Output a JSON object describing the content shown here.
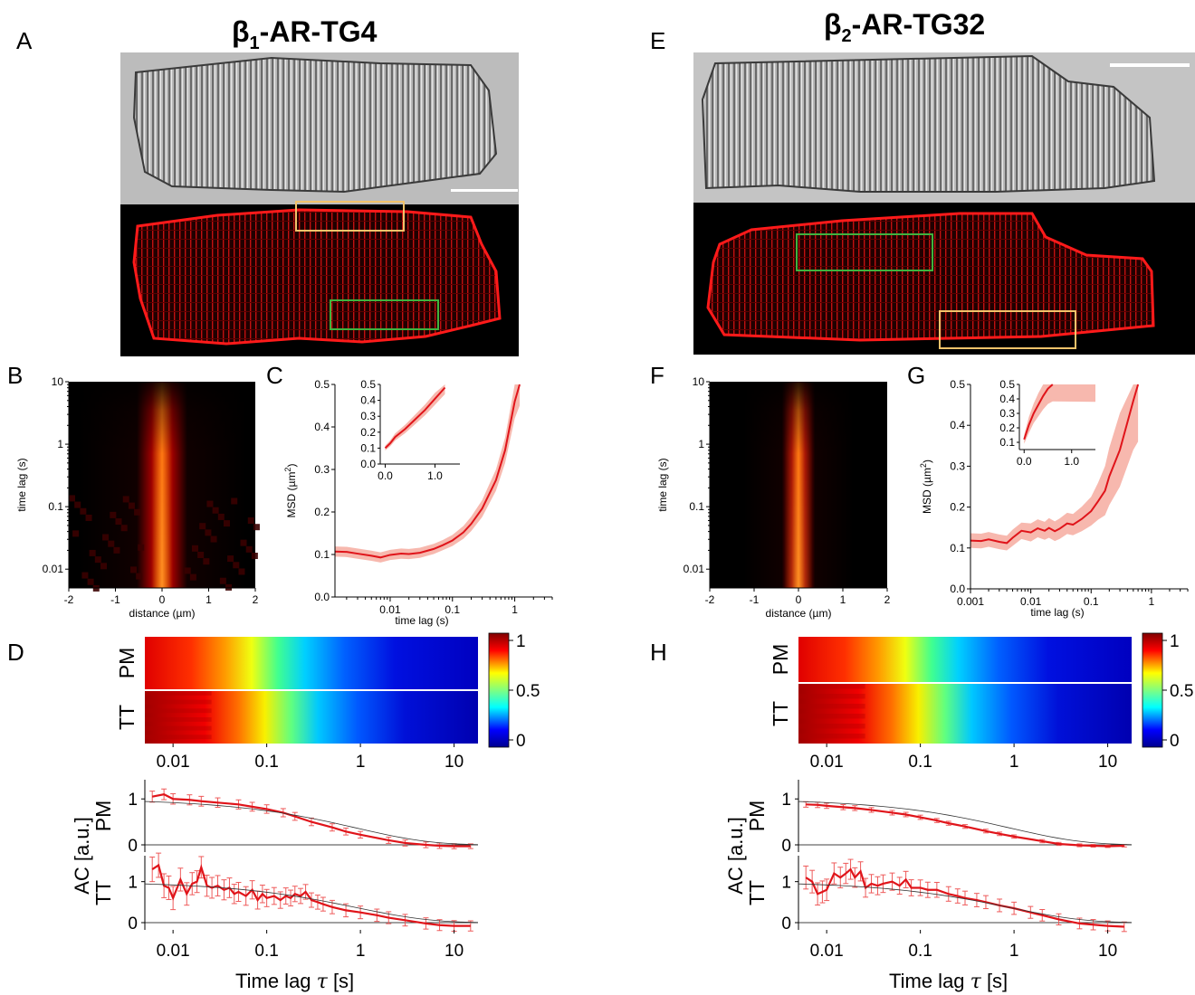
{
  "panels": {
    "A": "A",
    "B": "B",
    "C": "C",
    "D": "D",
    "E": "E",
    "F": "F",
    "G": "G",
    "H": "H"
  },
  "left": {
    "title_main": "β",
    "title_sub": "1",
    "title_rest": "-AR-TG4"
  },
  "right": {
    "title_main": "β",
    "title_sub": "2",
    "title_rest": "-AR-TG32"
  },
  "colors": {
    "red": "#e0141a",
    "band": "#f7b8ae",
    "roi_yellow": "#f2c36b",
    "roi_green": "#3fb33f"
  },
  "heatmap_axes": {
    "ylabel": "time lag (s)",
    "xlabel": "distance (µm)",
    "yticks": [
      "10",
      "1",
      "0.1",
      "0.01"
    ],
    "xticks": [
      "-2",
      "-1",
      "0",
      "1",
      "2"
    ]
  },
  "msd_axes": {
    "ylabel_main": "MSD (µm",
    "ylabel_sup": "2",
    "ylabel_end": ")",
    "xlabel": "time lag (s)",
    "yticks": [
      "0.0",
      "0.1",
      "0.2",
      "0.3",
      "0.4",
      "0.5"
    ],
    "xticks_C": [
      "0.01",
      "0.1",
      "1"
    ],
    "xticks_G": [
      "0.001",
      "0.01",
      "0.1",
      "1"
    ],
    "inset_yticks": [
      "0.0",
      "0.1",
      "0.2",
      "0.3",
      "0.4",
      "0.5"
    ],
    "inset_yticks_G": [
      "0.1",
      "0.2",
      "0.3",
      "0.4",
      "0.5"
    ],
    "inset_xticks": [
      "0.0",
      "1.0"
    ]
  },
  "ac_axes": {
    "rows": [
      "PM",
      "TT"
    ],
    "colorbar_ticks": [
      "1",
      "0.5",
      "0"
    ],
    "xticks": [
      "0.01",
      "0.1",
      "1",
      "10"
    ],
    "yticks": [
      "1",
      "0"
    ],
    "ylabel_main": "AC",
    "ylabel_unit": "[a.u.]",
    "xlabel_main": "Time lag ",
    "xlabel_sym": "τ",
    "xlabel_unit": " [s]"
  },
  "chart_data": [
    {
      "type": "line",
      "panel": "C",
      "ylabel": "MSD (µm²)",
      "xlabel": "time lag (s)",
      "xscale": "log",
      "xlim": [
        0.0013,
        4
      ],
      "ylim": [
        0,
        0.5
      ],
      "x": [
        0.0013,
        0.002,
        0.003,
        0.005,
        0.007,
        0.01,
        0.015,
        0.02,
        0.03,
        0.05,
        0.07,
        0.1,
        0.15,
        0.2,
        0.3,
        0.5,
        0.7,
        1.0,
        1.2
      ],
      "y": [
        0.107,
        0.106,
        0.102,
        0.097,
        0.093,
        0.099,
        0.102,
        0.101,
        0.104,
        0.113,
        0.122,
        0.133,
        0.152,
        0.172,
        0.208,
        0.275,
        0.345,
        0.46,
        0.5
      ],
      "band": [
        0.012,
        0.012,
        0.012,
        0.012,
        0.012,
        0.012,
        0.012,
        0.012,
        0.012,
        0.012,
        0.012,
        0.013,
        0.015,
        0.017,
        0.02,
        0.025,
        0.03,
        0.04,
        0.05
      ],
      "inset": {
        "xlim": [
          -0.1,
          1.5
        ],
        "ylim": [
          0,
          0.5
        ],
        "x": [
          0,
          0.1,
          0.2,
          0.4,
          0.6,
          0.8,
          1.0,
          1.2
        ],
        "y": [
          0.1,
          0.13,
          0.17,
          0.22,
          0.28,
          0.34,
          0.41,
          0.48
        ]
      }
    },
    {
      "type": "line",
      "panel": "G",
      "ylabel": "MSD (µm²)",
      "xlabel": "time lag (s)",
      "xscale": "log",
      "xlim": [
        0.001,
        4
      ],
      "ylim": [
        0,
        0.5
      ],
      "x": [
        0.001,
        0.0015,
        0.002,
        0.003,
        0.004,
        0.005,
        0.007,
        0.01,
        0.013,
        0.017,
        0.02,
        0.025,
        0.03,
        0.04,
        0.05,
        0.07,
        0.1,
        0.13,
        0.17,
        0.2,
        0.3,
        0.5,
        0.6
      ],
      "y": [
        0.118,
        0.117,
        0.121,
        0.115,
        0.112,
        0.125,
        0.142,
        0.138,
        0.148,
        0.142,
        0.149,
        0.141,
        0.147,
        0.16,
        0.157,
        0.171,
        0.19,
        0.214,
        0.24,
        0.275,
        0.34,
        0.46,
        0.5
      ],
      "band": [
        0.018,
        0.018,
        0.018,
        0.018,
        0.018,
        0.02,
        0.02,
        0.022,
        0.022,
        0.022,
        0.024,
        0.024,
        0.025,
        0.026,
        0.026,
        0.03,
        0.035,
        0.045,
        0.06,
        0.07,
        0.09,
        0.12,
        0.14
      ],
      "inset": {
        "xlim": [
          -0.1,
          1.5
        ],
        "ylim": [
          0.05,
          0.5
        ],
        "x": [
          0,
          0.05,
          0.1,
          0.2,
          0.3,
          0.4,
          0.5,
          0.6
        ],
        "y": [
          0.12,
          0.17,
          0.22,
          0.3,
          0.36,
          0.42,
          0.47,
          0.5
        ]
      }
    },
    {
      "type": "line",
      "panel": "D",
      "xscale": "log",
      "xlim": [
        0.005,
        18
      ],
      "series": [
        {
          "name": "PM",
          "x": [
            0.006,
            0.008,
            0.01,
            0.015,
            0.02,
            0.03,
            0.05,
            0.07,
            0.1,
            0.15,
            0.2,
            0.3,
            0.5,
            0.7,
            1,
            2,
            3,
            5,
            7,
            10,
            15
          ],
          "y": [
            1.05,
            1.1,
            1.0,
            0.98,
            0.95,
            0.92,
            0.88,
            0.83,
            0.78,
            0.7,
            0.62,
            0.5,
            0.38,
            0.29,
            0.22,
            0.1,
            0.04,
            0.0,
            -0.02,
            -0.03,
            -0.03
          ]
        },
        {
          "name": "TT",
          "x": [
            0.006,
            0.007,
            0.008,
            0.009,
            0.01,
            0.012,
            0.014,
            0.016,
            0.018,
            0.02,
            0.023,
            0.026,
            0.03,
            0.035,
            0.04,
            0.045,
            0.05,
            0.06,
            0.07,
            0.08,
            0.09,
            0.1,
            0.12,
            0.14,
            0.16,
            0.18,
            0.2,
            0.23,
            0.26,
            0.3,
            0.35,
            0.4,
            0.5,
            0.7,
            1,
            1.5,
            2,
            3,
            5,
            7,
            10,
            15
          ],
          "y": [
            1.3,
            1.4,
            0.9,
            0.85,
            0.6,
            1.05,
            0.7,
            0.95,
            1.0,
            1.35,
            0.9,
            0.85,
            0.9,
            0.8,
            0.85,
            0.7,
            0.75,
            0.65,
            0.8,
            0.55,
            0.7,
            0.6,
            0.65,
            0.55,
            0.65,
            0.6,
            0.7,
            0.65,
            0.75,
            0.55,
            0.5,
            0.45,
            0.38,
            0.3,
            0.25,
            0.18,
            0.12,
            0.06,
            -0.02,
            -0.06,
            -0.08,
            -0.08
          ]
        }
      ]
    },
    {
      "type": "line",
      "panel": "H",
      "xscale": "log",
      "xlim": [
        0.005,
        18
      ],
      "series": [
        {
          "name": "PM",
          "x": [
            0.006,
            0.008,
            0.01,
            0.015,
            0.02,
            0.03,
            0.05,
            0.07,
            0.1,
            0.15,
            0.2,
            0.3,
            0.5,
            0.7,
            1,
            2,
            3,
            5,
            7,
            10,
            15
          ],
          "y": [
            0.88,
            0.87,
            0.85,
            0.82,
            0.8,
            0.76,
            0.7,
            0.66,
            0.6,
            0.53,
            0.47,
            0.4,
            0.3,
            0.24,
            0.18,
            0.08,
            0.02,
            -0.01,
            -0.02,
            -0.03,
            -0.02
          ]
        },
        {
          "name": "TT",
          "x": [
            0.006,
            0.007,
            0.008,
            0.009,
            0.01,
            0.012,
            0.014,
            0.016,
            0.018,
            0.02,
            0.023,
            0.026,
            0.03,
            0.035,
            0.04,
            0.05,
            0.06,
            0.07,
            0.08,
            0.1,
            0.12,
            0.15,
            0.2,
            0.25,
            0.3,
            0.4,
            0.5,
            0.7,
            1,
            1.5,
            2,
            3,
            5,
            7,
            10,
            15
          ],
          "y": [
            1.1,
            1.0,
            0.7,
            0.75,
            0.8,
            1.2,
            1.1,
            1.2,
            1.3,
            1.1,
            1.25,
            0.85,
            0.95,
            0.9,
            0.95,
            1.0,
            0.9,
            1.05,
            0.85,
            0.85,
            0.8,
            0.8,
            0.7,
            0.65,
            0.6,
            0.55,
            0.5,
            0.42,
            0.35,
            0.25,
            0.18,
            0.08,
            -0.02,
            -0.05,
            -0.08,
            -0.1
          ]
        }
      ]
    }
  ]
}
